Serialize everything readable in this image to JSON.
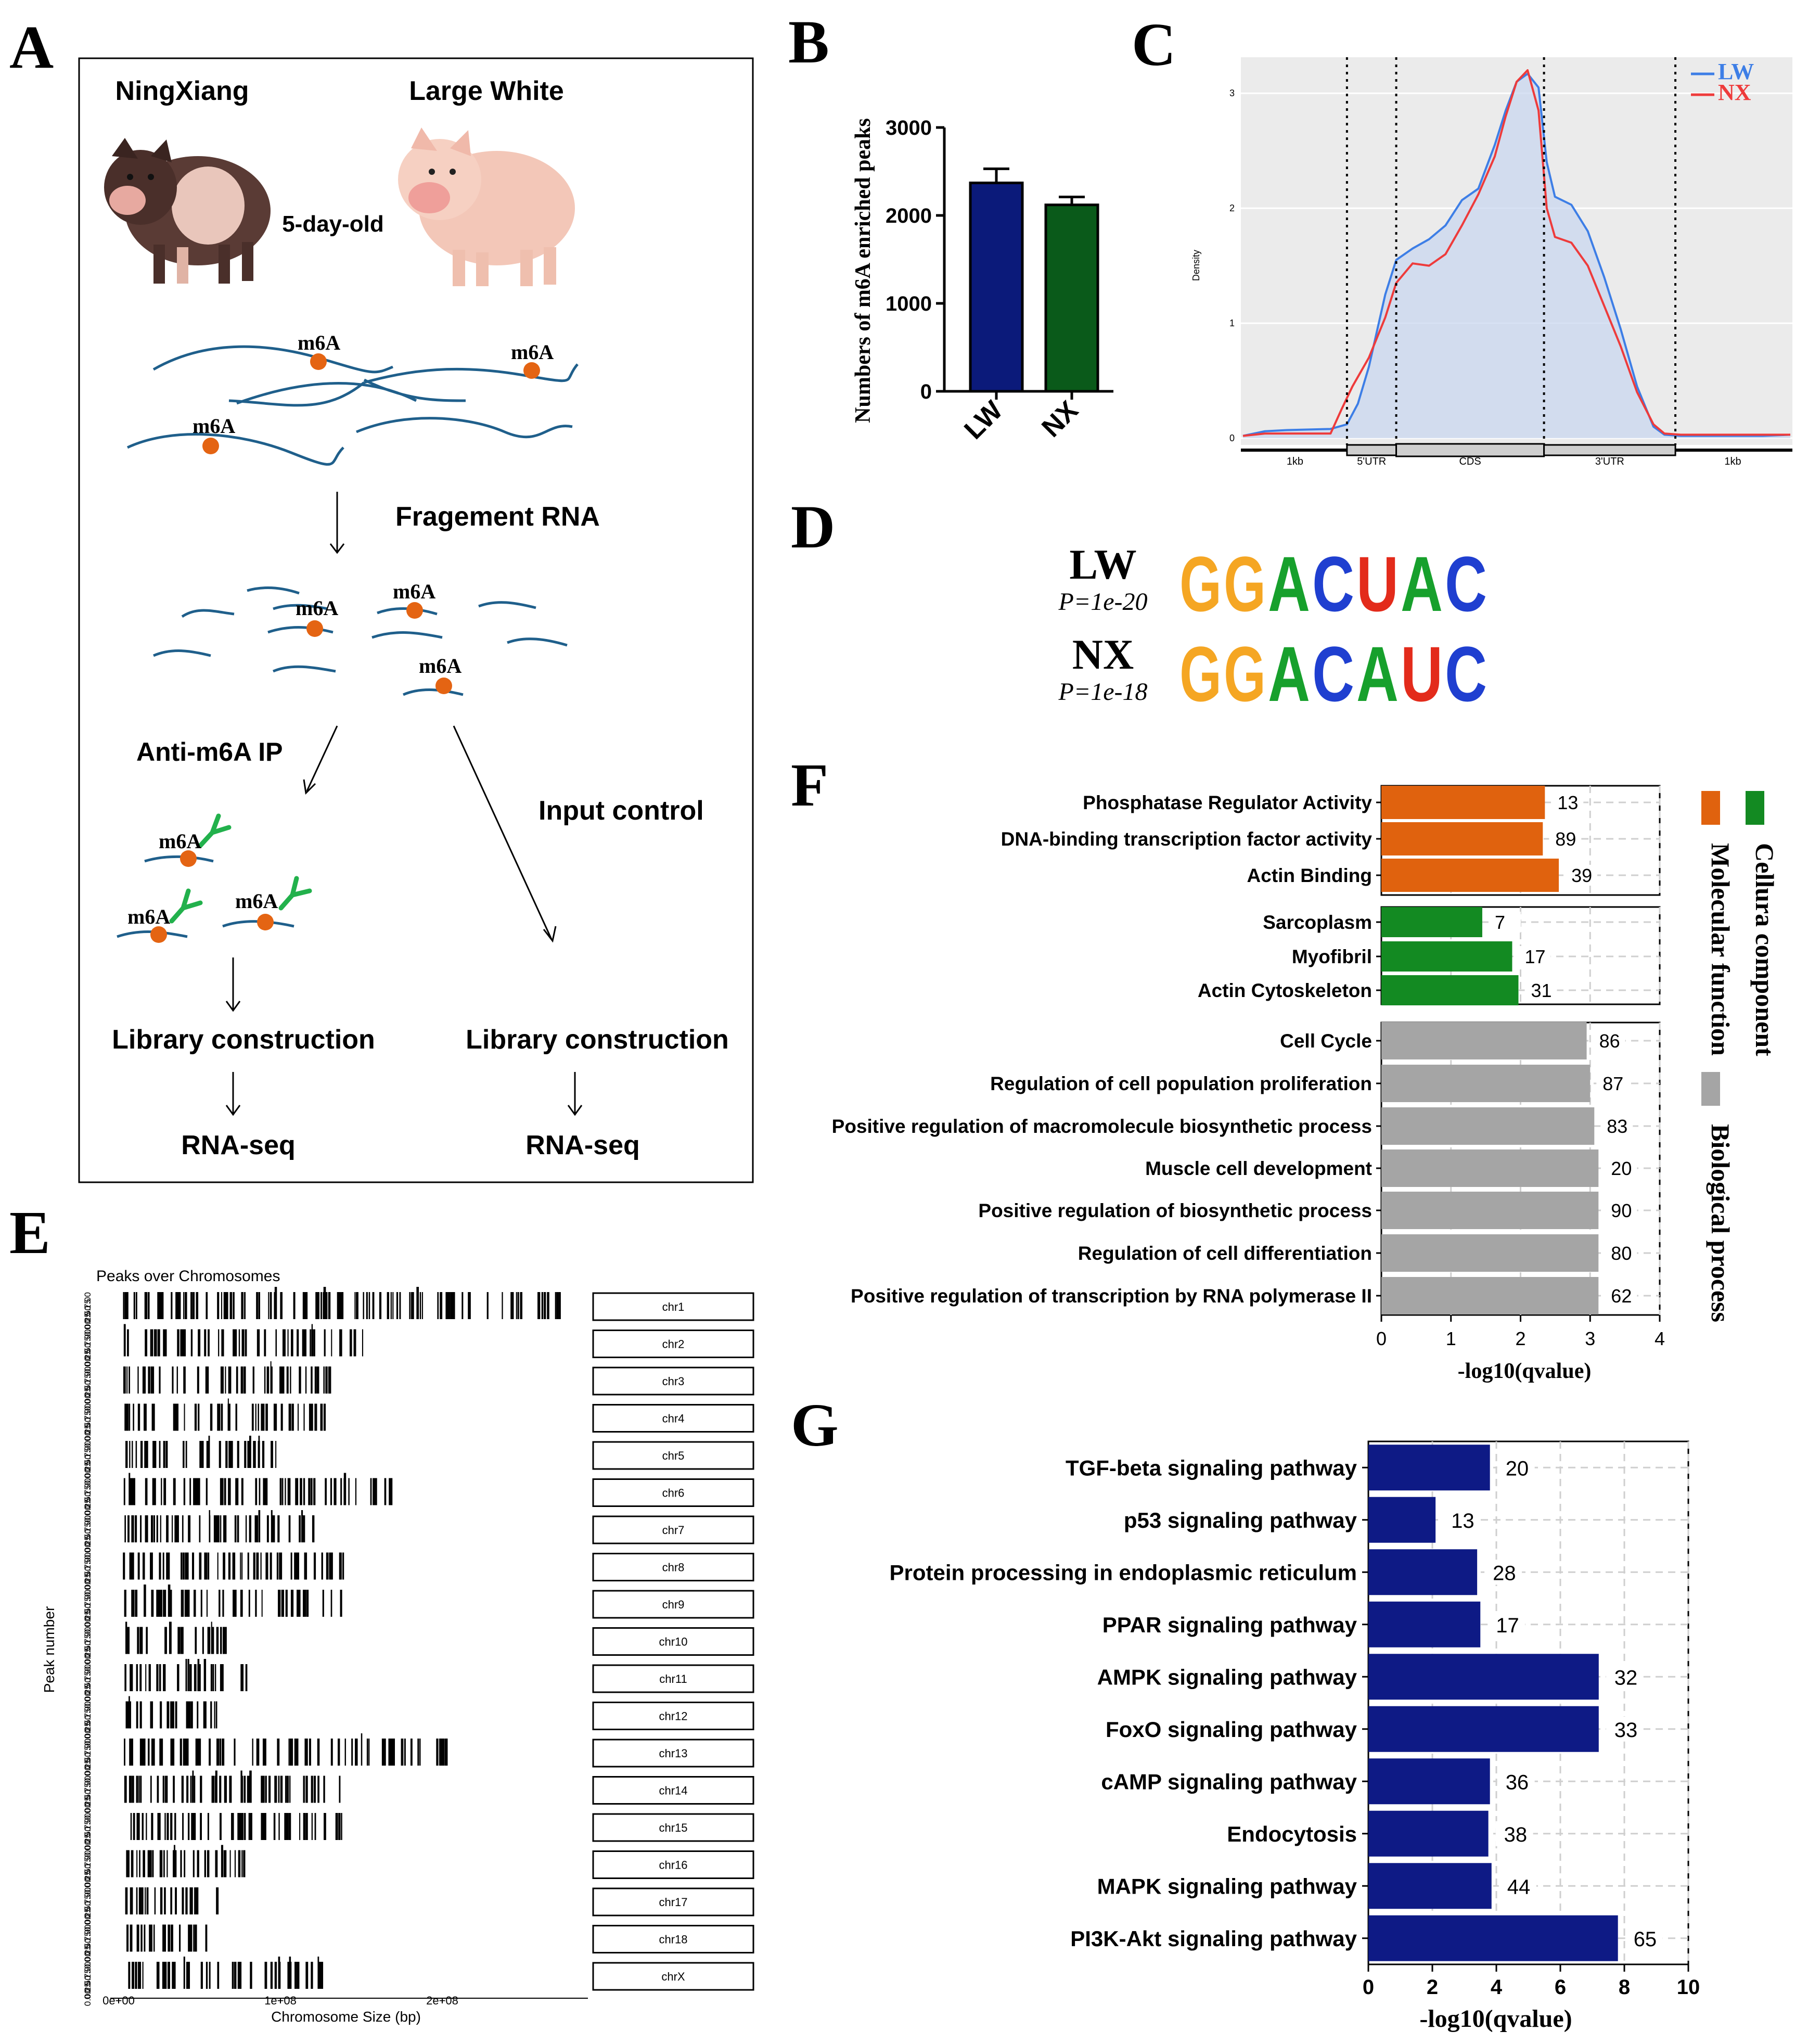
{
  "panel_letters": {
    "a": "A",
    "b": "B",
    "c": "C",
    "d": "D",
    "e": "E",
    "f": "F",
    "g": "G"
  },
  "panel_a": {
    "breed_left": "NingXiang",
    "breed_right": "Large White",
    "age": "5-day-old",
    "m6a": "m6A",
    "step_fragment": "Fragement RNA",
    "step_ip": "Anti-m6A IP",
    "step_input": "Input control",
    "step_library_left": "Library construction",
    "step_library_right": "Library construction",
    "step_seq_left": "RNA-seq",
    "step_seq_right": "RNA-seq",
    "colors": {
      "rna": "#1f5f8b",
      "m6a_dot": "#e46413",
      "antibody": "#22b14c",
      "pig_left": "#5a3b35",
      "pig_right": "#f3c7b8"
    }
  },
  "panel_b": {
    "chart_data": {
      "type": "bar",
      "categories": [
        "LW",
        "NX"
      ],
      "values": [
        2370,
        2120
      ],
      "errors": [
        160,
        90
      ],
      "ylabel": "Numbers of m6A enriched peaks",
      "ylim": [
        0,
        3000
      ],
      "yticks": [
        "0",
        "1000",
        "2000",
        "3000"
      ],
      "colors": [
        "#0b1a7a",
        "#0a5a1a"
      ]
    }
  },
  "panel_c": {
    "chart_data": {
      "type": "line",
      "ylabel": "Density",
      "yticks": [
        "0",
        "1",
        "2",
        "3"
      ],
      "ylim": [
        0,
        3.2
      ],
      "segments": [
        "1kb",
        "5'UTR",
        "CDS",
        "3'UTR",
        "1kb"
      ],
      "legend": [
        "LW",
        "NX"
      ],
      "legend_position": "top-right",
      "series": [
        {
          "name": "LW",
          "color": "#3d7ee6",
          "x": [
            0,
            0.04,
            0.08,
            0.16,
            0.19,
            0.21,
            0.23,
            0.26,
            0.28,
            0.31,
            0.34,
            0.37,
            0.4,
            0.43,
            0.46,
            0.48,
            0.5,
            0.52,
            0.54,
            0.555,
            0.57,
            0.6,
            0.63,
            0.66,
            0.69,
            0.72,
            0.75,
            0.77,
            0.8,
            0.85,
            0.9,
            0.95,
            1.0
          ],
          "y": [
            0.02,
            0.06,
            0.07,
            0.08,
            0.12,
            0.3,
            0.62,
            1.25,
            1.55,
            1.65,
            1.73,
            1.85,
            2.07,
            2.17,
            2.55,
            2.85,
            3.1,
            3.17,
            3.05,
            2.4,
            2.1,
            2.03,
            1.8,
            1.4,
            0.95,
            0.45,
            0.1,
            0.03,
            0.02,
            0.02,
            0.02,
            0.02,
            0.03
          ]
        },
        {
          "name": "NX",
          "color": "#ee3b3b",
          "x": [
            0,
            0.04,
            0.08,
            0.16,
            0.18,
            0.2,
            0.23,
            0.26,
            0.28,
            0.31,
            0.34,
            0.37,
            0.4,
            0.43,
            0.46,
            0.48,
            0.5,
            0.52,
            0.54,
            0.555,
            0.57,
            0.6,
            0.63,
            0.66,
            0.69,
            0.72,
            0.75,
            0.77,
            0.8,
            0.85,
            0.9,
            0.95,
            1.0
          ],
          "y": [
            0.02,
            0.04,
            0.04,
            0.04,
            0.25,
            0.45,
            0.7,
            1.05,
            1.35,
            1.52,
            1.5,
            1.6,
            1.85,
            2.12,
            2.45,
            2.8,
            3.1,
            3.2,
            2.85,
            2.0,
            1.75,
            1.7,
            1.5,
            1.15,
            0.8,
            0.4,
            0.12,
            0.04,
            0.03,
            0.03,
            0.03,
            0.03,
            0.03
          ]
        }
      ],
      "boundaries": [
        0.19,
        0.28,
        0.55,
        0.79
      ]
    }
  },
  "panel_d": {
    "rows": [
      {
        "label": "LW",
        "pvalue": "P=1e-20",
        "motif": "GGACUAC"
      },
      {
        "label": "NX",
        "pvalue": "P=1e-18",
        "motif": "GGACAUC"
      }
    ],
    "letter_colors": {
      "G": "#f5a623",
      "A": "#17a02c",
      "C": "#1f3fd0",
      "U": "#e32b1b"
    }
  },
  "panel_e": {
    "chart_data": {
      "type": "bar",
      "title": "Peaks over Chromosomes",
      "xlabel": "Chromosome Size (bp)",
      "ylabel": "Peak number",
      "xticks": [
        "0e+00",
        "1e+08",
        "2e+08"
      ],
      "chromosomes": [
        "chr1",
        "chr2",
        "chr3",
        "chr4",
        "chr5",
        "chr6",
        "chr7",
        "chr8",
        "chr9",
        "chr10",
        "chr11",
        "chr12",
        "chr13",
        "chr14",
        "chr15",
        "chr16",
        "chr17",
        "chr18",
        "chrX"
      ],
      "chromosome_sizes_mb": [
        274,
        151,
        132,
        130,
        104,
        170,
        121,
        139,
        139,
        69,
        79,
        62,
        208,
        141,
        140,
        79,
        63,
        55,
        126
      ],
      "ytick_labels": [
        "1.00",
        "0.75",
        "0.50",
        "0.25",
        "0.00"
      ]
    }
  },
  "panel_f": {
    "chart_data": {
      "type": "bar",
      "orientation": "horizontal",
      "xlabel": "-log10(qvalue)",
      "xlim": [
        0,
        4
      ],
      "xticks": [
        "0",
        "1",
        "2",
        "3",
        "4"
      ],
      "groups": [
        {
          "name": "Molecular function",
          "color": "#e0620e",
          "categories": [
            "Phosphatase Regulator Activity",
            "DNA-binding transcription factor activity",
            "Actin Binding"
          ],
          "values": [
            2.35,
            2.32,
            2.55
          ],
          "counts": [
            "13",
            "89",
            "39"
          ]
        },
        {
          "name": "Cellura component",
          "color": "#138a22",
          "categories": [
            "Sarcoplasm",
            "Myofibril",
            "Actin Cytoskeleton"
          ],
          "values": [
            1.45,
            1.88,
            1.97
          ],
          "counts": [
            "7",
            "17",
            "31"
          ]
        },
        {
          "name": "Biological process",
          "color": "#a5a5a5",
          "categories": [
            "Cell Cycle",
            "Regulation of cell population proliferation",
            "Positive regulation of macromolecule biosynthetic process",
            "Muscle cell development",
            "Positive regulation of biosynthetic process",
            "Regulation of cell differentiation",
            "Positive regulation of transcription by RNA polymerase II"
          ],
          "values": [
            2.95,
            3.0,
            3.06,
            3.12,
            3.12,
            3.12,
            3.12
          ],
          "counts": [
            "86",
            "87",
            "83",
            "20",
            "90",
            "80",
            "62"
          ]
        }
      ]
    }
  },
  "panel_g": {
    "chart_data": {
      "type": "bar",
      "orientation": "horizontal",
      "xlabel": "-log10(qvalue)",
      "xlim": [
        0,
        10
      ],
      "xticks": [
        "0",
        "2",
        "4",
        "6",
        "8",
        "10"
      ],
      "color": "#0e1a85",
      "categories": [
        "TGF-beta signaling pathway",
        "p53 signaling pathway",
        "Protein processing in endoplasmic reticulum",
        "PPAR signaling pathway",
        "AMPK signaling pathway",
        "FoxO signaling pathway",
        "cAMP signaling pathway",
        "Endocytosis",
        "MAPK signaling pathway",
        "PI3K-Akt signaling pathway"
      ],
      "values": [
        3.8,
        2.1,
        3.4,
        3.5,
        7.2,
        7.2,
        3.8,
        3.75,
        3.85,
        7.8
      ],
      "counts": [
        "20",
        "13",
        "28",
        "17",
        "32",
        "33",
        "36",
        "38",
        "44",
        "65"
      ]
    }
  }
}
